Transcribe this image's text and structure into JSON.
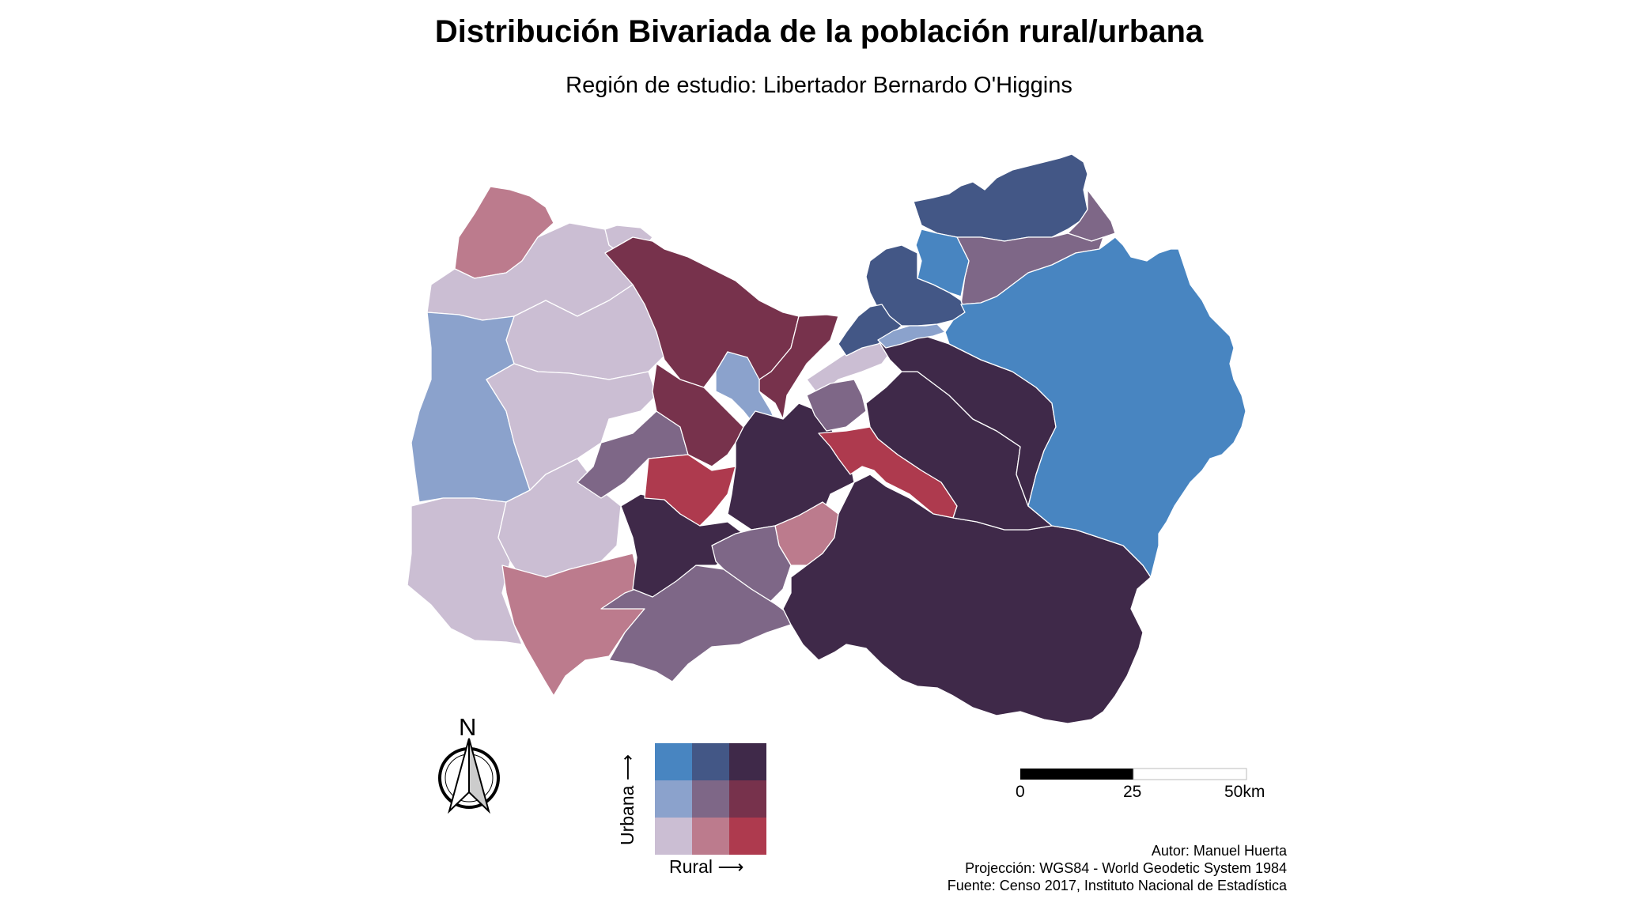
{
  "header": {
    "title": "Distribución Bivariada de la población rural/urbana",
    "subtitle": "Región de estudio: Libertador Bernardo O'Higgins"
  },
  "palette": {
    "low_low": "#CBBED3",
    "low_rural_mid": "#BC7B8D",
    "low_rural_high": "#AE3A4E",
    "mid_urban_low_rural": "#8BA2CC",
    "mid_mid": "#7E6787",
    "mid_urban_high_rural": "#77324C",
    "high_urban_low_rural": "#4885C1",
    "high_urban_mid_rural": "#435786",
    "high_high": "#3F2949"
  },
  "legend": {
    "y_label": "Urbana ⟶",
    "x_label": "Rural ⟶",
    "grid": [
      [
        "#4885C1",
        "#435786",
        "#3F2949"
      ],
      [
        "#8BA2CC",
        "#7E6787",
        "#77324C"
      ],
      [
        "#CBBED3",
        "#BC7B8D",
        "#AE3A4E"
      ]
    ]
  },
  "north_arrow": {
    "label": "N"
  },
  "scale_bar": {
    "ticks": [
      "0",
      "25",
      "50km"
    ]
  },
  "credits": {
    "author": "Autor: Manuel Huerta",
    "projection": "Projección: WGS84 - World Geodetic System 1984",
    "source": "Fuente: Censo 2017, Instituto Nacional de Estadística"
  }
}
